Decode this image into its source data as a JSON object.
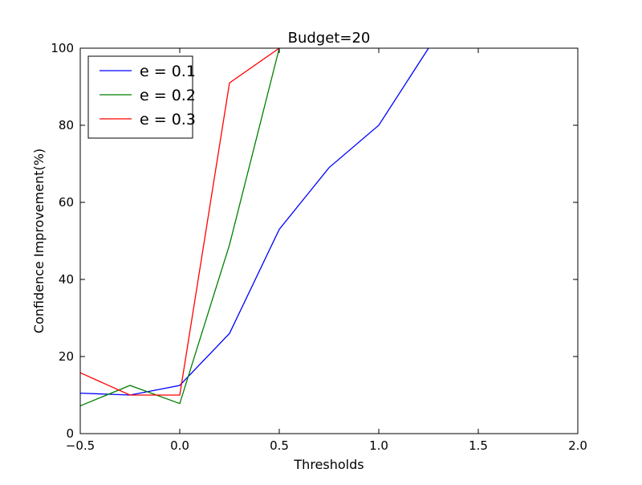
{
  "chart_data": {
    "type": "line",
    "title": "Budget=20",
    "xlabel": "Thresholds",
    "ylabel": "Confidence Improvement(%)",
    "xlim": [
      -0.5,
      2.0
    ],
    "ylim": [
      0,
      100
    ],
    "xticks": [
      -0.5,
      0.0,
      0.5,
      1.0,
      1.5,
      2.0
    ],
    "xtick_labels": [
      "−0.5",
      "0.0",
      "0.5",
      "1.0",
      "1.5",
      "2.0"
    ],
    "yticks": [
      0,
      20,
      40,
      60,
      80,
      100
    ],
    "ytick_labels": [
      "0",
      "20",
      "40",
      "60",
      "80",
      "100"
    ],
    "grid": false,
    "legend_position": "upper-left",
    "series": [
      {
        "name": "e = 0.1",
        "color": "#0000ff",
        "x": [
          -0.5,
          -0.25,
          0.0,
          0.25,
          0.5,
          0.75,
          1.0,
          1.25
        ],
        "y": [
          10.5,
          10.0,
          12.5,
          26.0,
          53.0,
          69.0,
          80.0,
          100.0
        ]
      },
      {
        "name": "e = 0.2",
        "color": "#008000",
        "x": [
          -0.5,
          -0.25,
          0.0,
          0.25,
          0.5
        ],
        "y": [
          7.2,
          12.5,
          7.8,
          49.0,
          100.0
        ]
      },
      {
        "name": "e = 0.3",
        "color": "#ff0000",
        "x": [
          -0.5,
          -0.25,
          0.0,
          0.25,
          0.5
        ],
        "y": [
          15.8,
          10.0,
          10.0,
          91.0,
          100.0
        ]
      }
    ]
  }
}
